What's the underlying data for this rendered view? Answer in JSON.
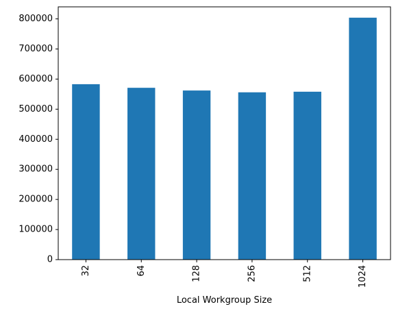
{
  "chart_data": {
    "type": "bar",
    "categories": [
      "32",
      "64",
      "128",
      "256",
      "512",
      "1024"
    ],
    "values": [
      583000,
      571000,
      562000,
      556000,
      558000,
      804000
    ],
    "title": "",
    "xlabel": "Local Workgroup Size",
    "ylabel": "",
    "ylim": [
      0,
      840000
    ],
    "yticks": [
      0,
      100000,
      200000,
      300000,
      400000,
      500000,
      600000,
      700000,
      800000
    ],
    "ytick_labels": [
      "0",
      "100000",
      "200000",
      "300000",
      "400000",
      "500000",
      "600000",
      "700000",
      "800000"
    ],
    "x_tick_rotation": "vertical",
    "grid": false,
    "legend": "none",
    "bar_color": "#1f77b4"
  }
}
